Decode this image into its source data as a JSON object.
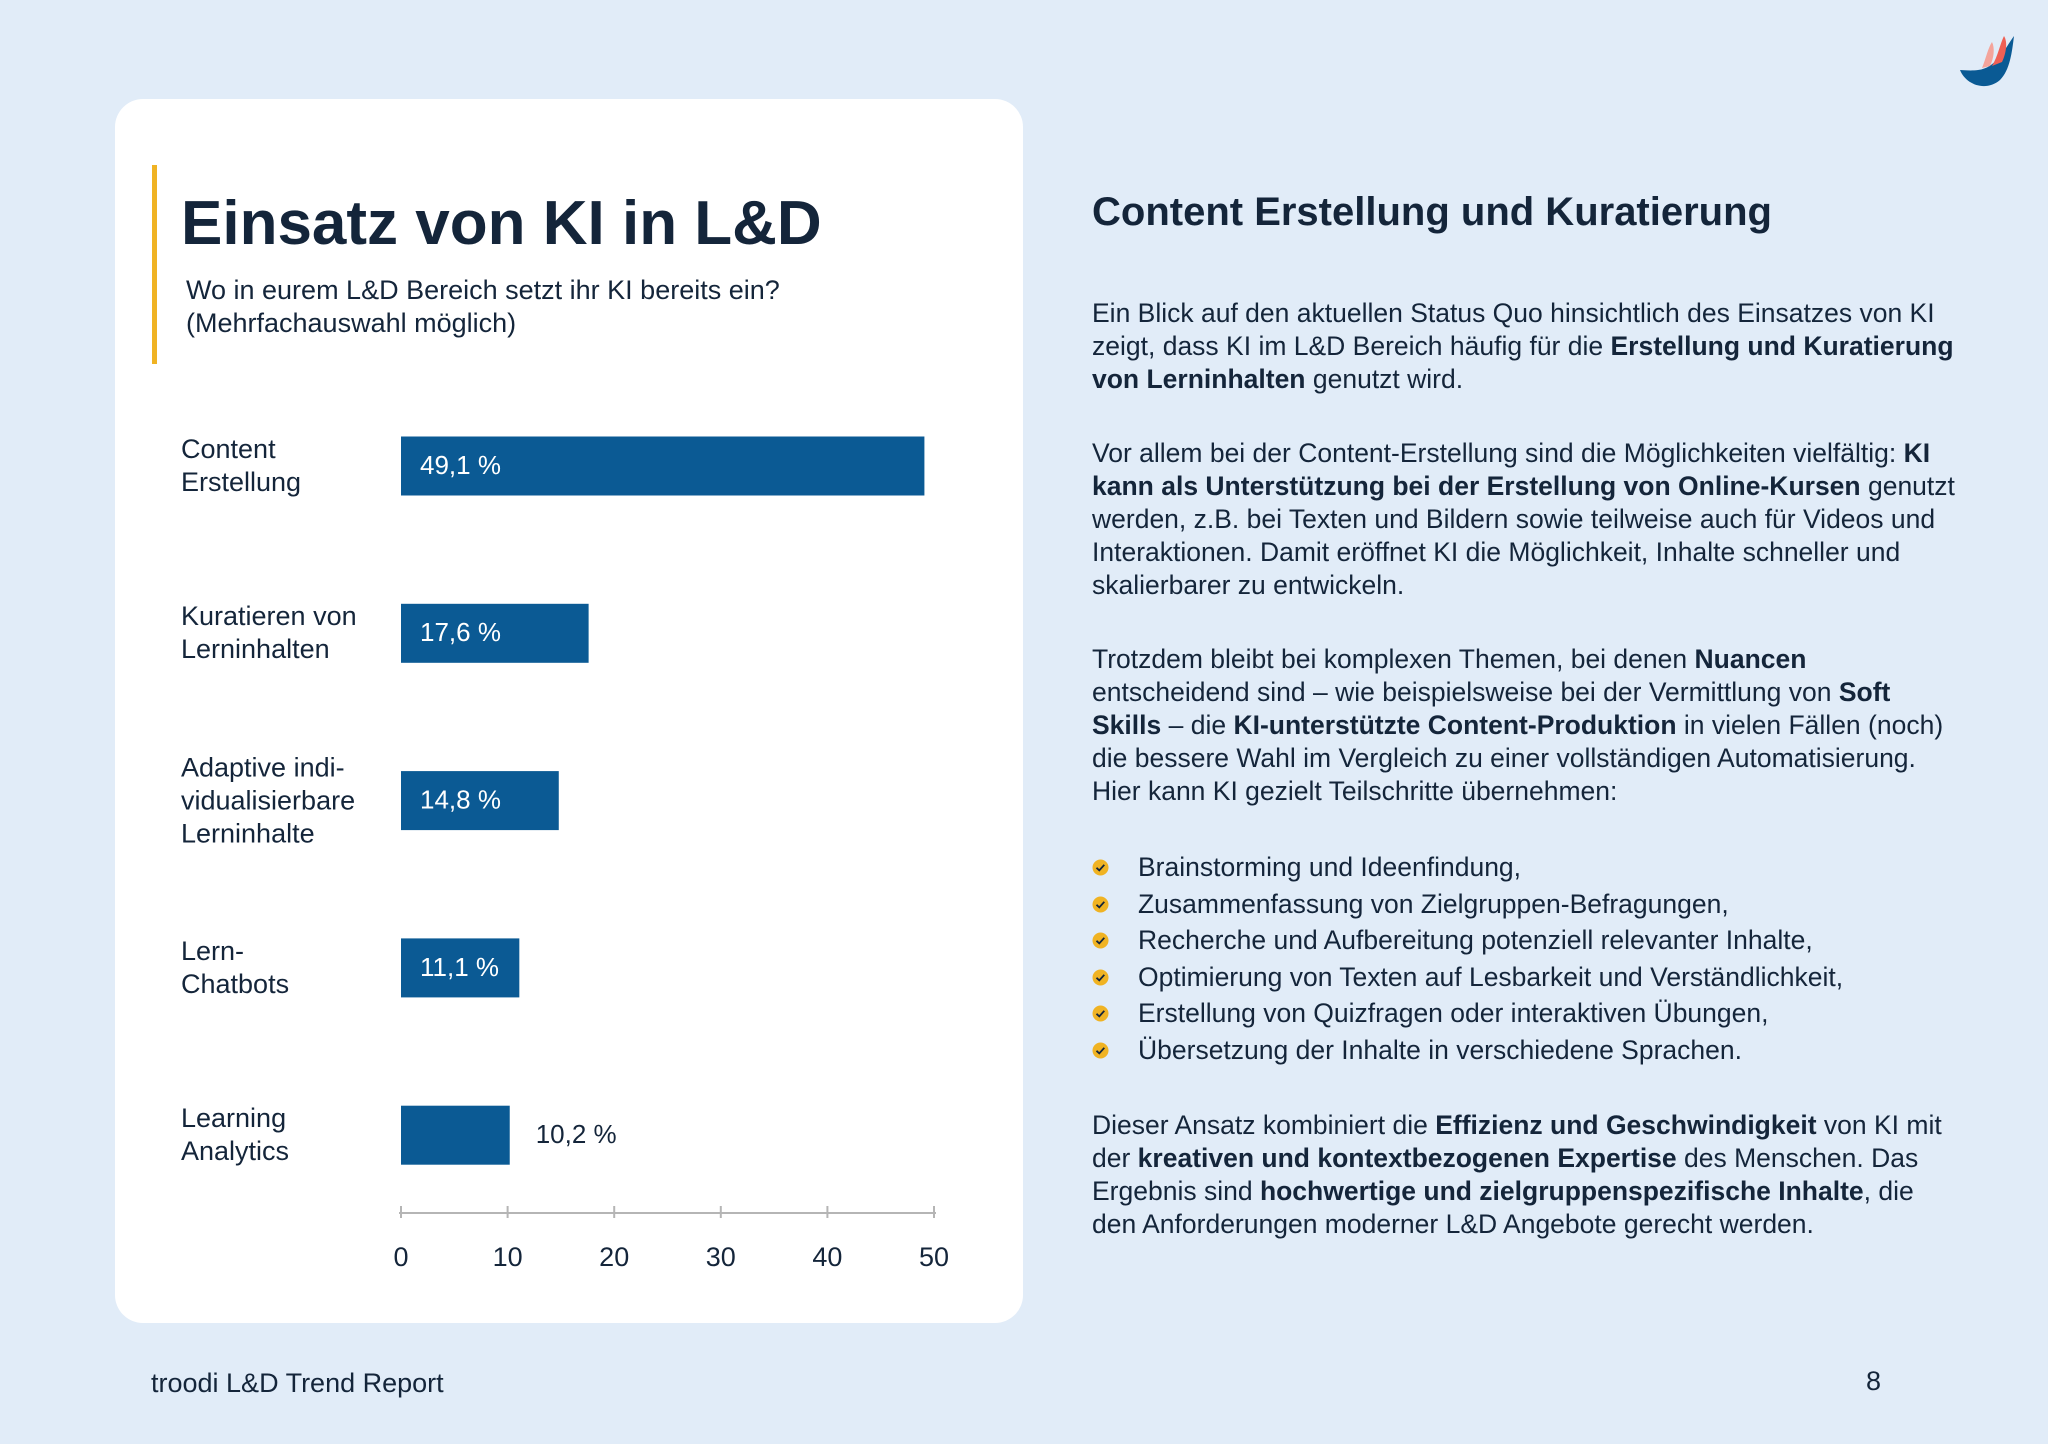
{
  "chart_data": {
    "type": "bar",
    "orientation": "horizontal",
    "title": "Einsatz von KI in L&D",
    "subtitle": "Wo in eurem L&D Bereich setzt ihr KI bereits ein?\n(Mehrfachauswahl möglich)",
    "categories": [
      "Content\nErstellung",
      "Kuratieren von\nLerninhalten",
      "Adaptive indi-\nvidualisierbare\nLerninhalte",
      "Lern-\nChatbots",
      "Learning\nAnalytics"
    ],
    "values": [
      49.1,
      17.6,
      14.8,
      11.1,
      10.2
    ],
    "value_labels": [
      "49,1 %",
      "17,6 %",
      "14,8 %",
      "11,1 %",
      "10,2 %"
    ],
    "color": "#0b5a94",
    "xlim": [
      0,
      50
    ],
    "xticks": [
      0,
      10,
      20,
      30,
      40,
      50
    ]
  },
  "article": {
    "heading": "Content Erstellung und Kuratierung",
    "paragraphs": [
      [
        "Ein Blick auf den aktuellen Status Quo hinsichtlich des Einsatzes von KI zeigt, dass KI im L&D Bereich häufig für die ",
        "Erstellung und Kuratierung von Lerninhalten",
        " genutzt wird."
      ],
      [
        "Vor allem bei der Content-Erstellung sind die Möglichkeiten vielfältig: ",
        "KI kann als Unterstützung bei der Erstellung von Online-Kursen",
        " genutzt werden, z.B. bei Texten und Bildern sowie teilweise auch für Videos und Interaktionen. Damit eröffnet KI die Möglichkeit, Inhalte schneller und skalierbarer zu entwickeln."
      ],
      [
        "Trotzdem bleibt bei komplexen Themen, bei denen ",
        "Nuancen",
        " entscheidend sind – wie beispielsweise bei der Vermittlung von ",
        "Soft Skills",
        " – die ",
        "KI-unterstützte Content-Produktion",
        " in vielen Fällen (noch) die bessere Wahl im Vergleich zu einer vollständigen Automatisierung. Hier kann KI gezielt Teilschritte übernehmen:"
      ]
    ],
    "bullets": [
      "Brainstorming und Ideenfindung,",
      "Zusammenfassung von Zielgruppen-Befragungen,",
      "Recherche und Aufbereitung potenziell relevanter Inhalte,",
      "Optimierung von Texten auf Lesbarkeit und Verständlichkeit,",
      "Erstellung von Quizfragen oder interaktiven Übungen,",
      "Übersetzung der Inhalte in verschiedene Sprachen."
    ],
    "closing": [
      "Dieser Ansatz kombiniert die ",
      "Effizienz und Geschwindigkeit",
      " von KI mit der ",
      "kreativen und kontextbezogenen Expertise",
      " des Menschen. Das Ergebnis sind ",
      "hochwertige und zielgruppenspezifische Inhalte",
      ", die den Anforderungen moderner L&D Angebote gerecht werden."
    ]
  },
  "footer": {
    "report": "troodi L&D Trend Report",
    "page": "8"
  }
}
